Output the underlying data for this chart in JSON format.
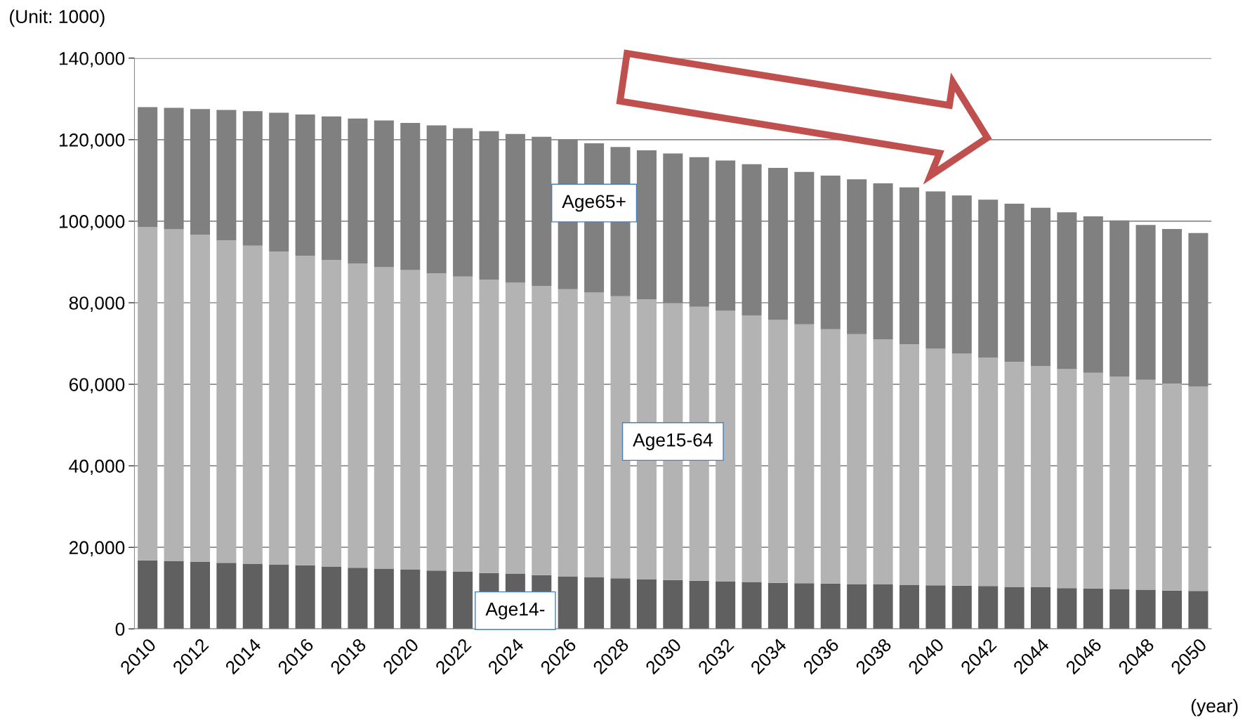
{
  "chart_data": {
    "type": "bar",
    "stacked": true,
    "ylabel": "(Unit: 1000)",
    "xlabel": "(year)",
    "categories": [
      "2010",
      null,
      "2012",
      null,
      "2014",
      null,
      "2016",
      null,
      "2018",
      null,
      "2020",
      null,
      "2022",
      null,
      "2024",
      null,
      "2026",
      null,
      "2028",
      null,
      "2030",
      null,
      "2032",
      null,
      "2034",
      null,
      "2036",
      null,
      "2038",
      null,
      "2040",
      null,
      "2042",
      null,
      "2044",
      null,
      "2046",
      null,
      "2048",
      null,
      "2050"
    ],
    "series": [
      {
        "name": "Age14-",
        "color": "#606060",
        "values": [
          16800,
          16600,
          16400,
          16200,
          16000,
          15800,
          15600,
          15300,
          15000,
          14800,
          14600,
          14300,
          14000,
          13700,
          13500,
          13200,
          12900,
          12700,
          12400,
          12200,
          12000,
          11800,
          11600,
          11500,
          11300,
          11200,
          11100,
          11000,
          10900,
          10800,
          10700,
          10600,
          10500,
          10300,
          10200,
          10000,
          9900,
          9700,
          9600,
          9400,
          9300
        ]
      },
      {
        "name": "Age15-64",
        "color": "#b3b3b3",
        "values": [
          81800,
          81400,
          80300,
          79100,
          78000,
          76800,
          75900,
          75200,
          74600,
          74000,
          73400,
          72900,
          72400,
          72000,
          71400,
          70900,
          70400,
          69800,
          69200,
          68600,
          67900,
          67200,
          66400,
          65400,
          64500,
          63500,
          62400,
          61300,
          60100,
          59000,
          58000,
          56900,
          56000,
          55200,
          54300,
          53700,
          52900,
          52200,
          51500,
          50800,
          50100
        ]
      },
      {
        "name": "Age65+",
        "color": "#808080",
        "values": [
          29400,
          29800,
          30800,
          32000,
          33000,
          34000,
          34700,
          35200,
          35600,
          35900,
          36100,
          36300,
          36400,
          36400,
          36500,
          36600,
          36700,
          36600,
          36600,
          36600,
          36700,
          36700,
          36900,
          37100,
          37300,
          37400,
          37700,
          38000,
          38300,
          38500,
          38600,
          38800,
          38800,
          38800,
          38800,
          38500,
          38400,
          38300,
          38000,
          37900,
          37700
        ]
      }
    ],
    "ylim": [
      0,
      140000
    ],
    "yticks": [
      0,
      {
        "value": 20000,
        "label": "20,000"
      },
      {
        "value": 40000,
        "label": "40,000"
      },
      {
        "value": 60000,
        "label": "60,000"
      },
      {
        "value": 80000,
        "label": "80,000"
      },
      {
        "value": 100000,
        "label": "100,000"
      },
      {
        "value": 120000,
        "label": "120,000"
      },
      {
        "value": 140000,
        "label": "140,000"
      }
    ],
    "grid": "y",
    "legend": false
  }
}
